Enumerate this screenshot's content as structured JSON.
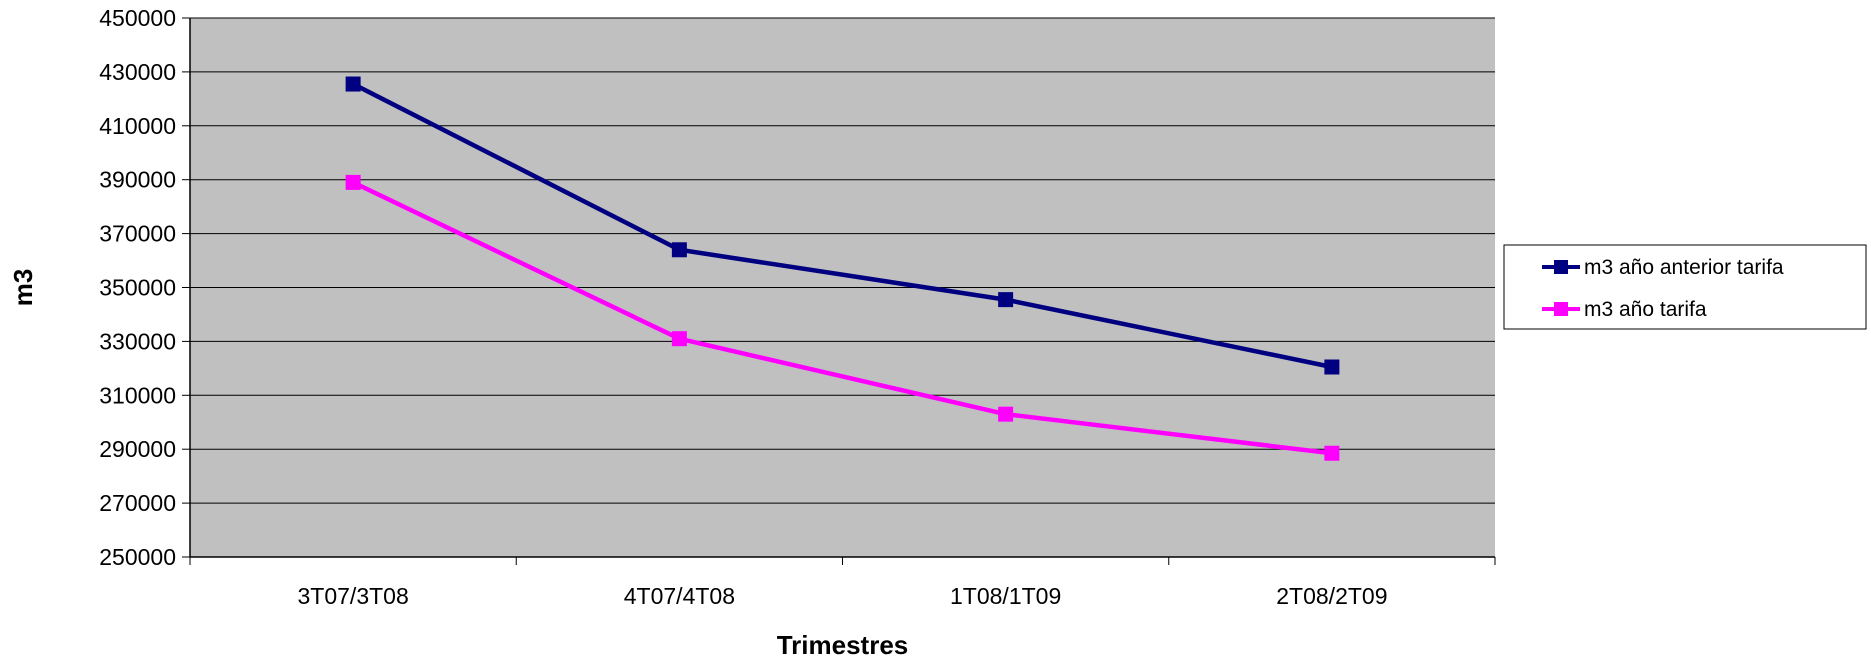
{
  "chart_data": {
    "type": "line",
    "title": "",
    "xlabel": "Trimestres",
    "ylabel": "m3",
    "categories": [
      "3T07/3T08",
      "4T07/4T08",
      "1T08/1T09",
      "2T08/2T09"
    ],
    "ylim": [
      250000,
      450000
    ],
    "yticks": [
      250000,
      270000,
      290000,
      310000,
      330000,
      350000,
      370000,
      390000,
      410000,
      430000,
      450000
    ],
    "grid": true,
    "legend": "right",
    "plot_background": "#C0C0C0",
    "series": [
      {
        "name": "m3 año anterior tarifa",
        "color": "#000080",
        "values": [
          425500,
          364000,
          345500,
          320500
        ]
      },
      {
        "name": "m3 año tarifa",
        "color": "#FF00FF",
        "values": [
          389000,
          331000,
          303000,
          288500
        ]
      }
    ]
  }
}
